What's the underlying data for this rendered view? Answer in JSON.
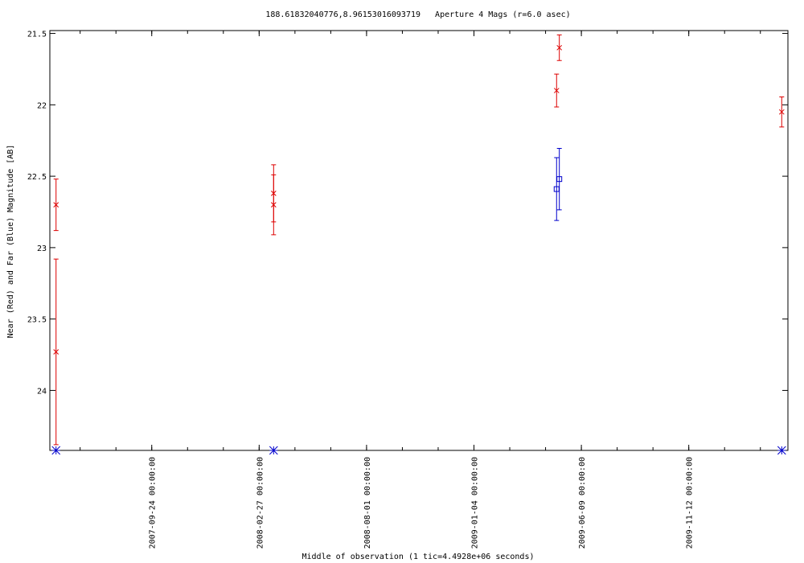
{
  "chart_data": {
    "type": "errorbar",
    "title": "188.61832040776,8.96153016093719   Aperture 4 Mags (r=6.0 asec)",
    "x_label": "Middle of observation (1 tic=4.4928e+06 seconds)",
    "y_label": "Near (Red) and Far (Blue) Magnitude [AB]",
    "xlim": [
      "2007-04-29",
      "2010-04-05"
    ],
    "xticks": [
      {
        "value": "2007-09-24",
        "label": "2007-09-24 00:00:00"
      },
      {
        "value": "2008-02-27",
        "label": "2008-02-27 00:00:00"
      },
      {
        "value": "2008-08-01",
        "label": "2008-08-01 00:00:00"
      },
      {
        "value": "2009-01-04",
        "label": "2009-01-04 00:00:00"
      },
      {
        "value": "2009-06-09",
        "label": "2009-06-09 00:00:00"
      },
      {
        "value": "2009-11-12",
        "label": "2009-11-12 00:00:00"
      }
    ],
    "ylim": [
      21.48,
      24.42
    ],
    "y_inverted": true,
    "yticks": [
      21.5,
      22,
      22.5,
      23,
      23.5,
      24
    ],
    "series": [
      {
        "color": "#dd0000",
        "marker": "x",
        "x": [
          "2007-05-08",
          "2007-05-08",
          "2008-03-19",
          "2008-03-19",
          "2009-05-04",
          "2009-05-08",
          "2010-03-27"
        ],
        "values": [
          22.7,
          23.73,
          22.62,
          22.7,
          21.9,
          21.6,
          22.05
        ],
        "errors": [
          0.18,
          0.65,
          0.2,
          0.21,
          0.115,
          0.09,
          0.105
        ]
      },
      {
        "color": "#0000cc",
        "marker": "square",
        "x": [
          "2009-05-04",
          "2009-05-08"
        ],
        "values": [
          22.59,
          22.52
        ],
        "errors": [
          0.22,
          0.215
        ]
      },
      {
        "color": "#0000cc",
        "marker": "star",
        "x": [
          "2007-05-08",
          "2008-03-19",
          "2010-03-27"
        ]
      }
    ]
  }
}
